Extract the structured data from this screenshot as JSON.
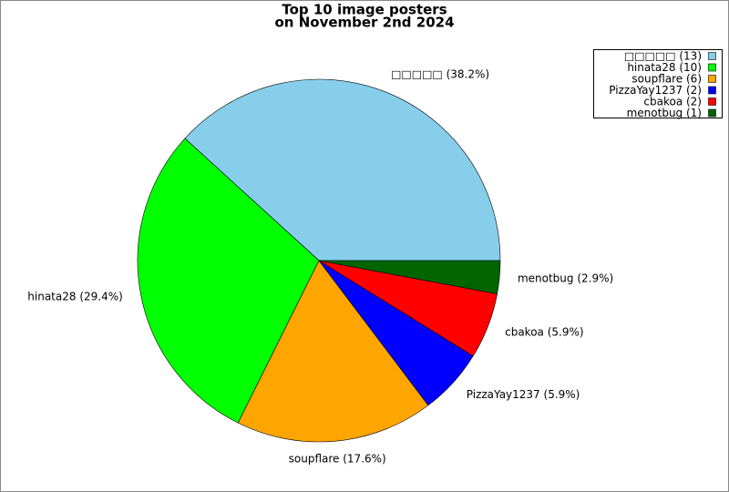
{
  "chart_data": {
    "type": "pie",
    "title": [
      "Top 10 image posters",
      "on November 2nd 2024"
    ],
    "categories": [
      "□□□□□",
      "hinata28",
      "soupflare",
      "PizzaYay1237",
      "cbakoa",
      "menotbug"
    ],
    "values": [
      13,
      10,
      6,
      2,
      2,
      1
    ],
    "colors": [
      "#87ceeb",
      "#00ff00",
      "#ffa500",
      "#0000ff",
      "#ff0000",
      "#006400"
    ],
    "labels": [
      "□□□□□ (38.2%)",
      "hinata28 (29.4%)",
      "soupflare (17.6%)",
      "PizzaYay1237 (5.9%)",
      "cbakoa (5.9%)",
      "menotbug (2.9%)"
    ],
    "legend_labels": [
      "□□□□□ (13)",
      "hinata28 (10)",
      "soupflare (6)",
      "PizzaYay1237 (2)",
      "cbakoa (2)",
      "menotbug (1)"
    ],
    "legend_position": "upper right"
  }
}
